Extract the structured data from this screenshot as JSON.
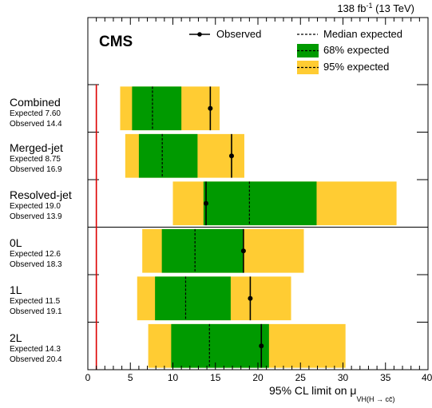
{
  "header": {
    "lumi": "138 fb",
    "lumi_sup": "-1",
    "energy": " (13 TeV)",
    "experiment": "CMS"
  },
  "legend": {
    "observed": "Observed",
    "median": "Median expected",
    "band68": "68% expected",
    "band95": "95% expected",
    "placement": "top-right"
  },
  "colors": {
    "band68": "#009a00",
    "band95": "#ffcc33",
    "sm_line": "#dd0000",
    "text": "#000000"
  },
  "rows": [
    {
      "name": "Combined",
      "expected_text": "Expected 7.60",
      "observed_text": "Observed 14.4"
    },
    {
      "name": "Merged-jet",
      "expected_text": "Expected 8.75",
      "observed_text": "Observed 16.9"
    },
    {
      "name": "Resolved-jet",
      "expected_text": "Expected 19.0",
      "observed_text": "Observed 13.9"
    },
    {
      "name": "0L",
      "expected_text": "Expected 12.6",
      "observed_text": "Observed 18.3"
    },
    {
      "name": "1L",
      "expected_text": "Expected 11.5",
      "observed_text": "Observed 19.1"
    },
    {
      "name": "2L",
      "expected_text": "Expected 14.3",
      "observed_text": "Observed 20.4"
    }
  ],
  "chart_data": {
    "type": "interval",
    "xlabel": "95% CL limit on μ",
    "xlabel_sub": "VH(H → cc̄)",
    "xlim": [
      0,
      40
    ],
    "xticks": [
      0,
      5,
      10,
      15,
      20,
      25,
      30,
      35,
      40
    ],
    "reference_line_x": 1,
    "categories": [
      "Combined",
      "Merged-jet",
      "Resolved-jet",
      "0L",
      "1L",
      "2L"
    ],
    "observed": [
      14.4,
      16.9,
      13.9,
      18.3,
      19.1,
      20.4
    ],
    "expected": [
      7.6,
      8.75,
      19.0,
      12.6,
      11.5,
      14.3
    ],
    "band68": [
      [
        5.2,
        11.0
      ],
      [
        6.0,
        12.9
      ],
      [
        13.6,
        26.9
      ],
      [
        8.7,
        18.3
      ],
      [
        7.9,
        16.8
      ],
      [
        9.8,
        21.3
      ]
    ],
    "band95": [
      [
        3.8,
        15.5
      ],
      [
        4.4,
        18.4
      ],
      [
        10.0,
        36.3
      ],
      [
        6.4,
        25.4
      ],
      [
        5.8,
        23.9
      ],
      [
        7.1,
        30.3
      ]
    ],
    "separators_after": [
      0,
      1,
      2,
      3,
      4
    ],
    "major_separator_after": [
      2
    ]
  }
}
